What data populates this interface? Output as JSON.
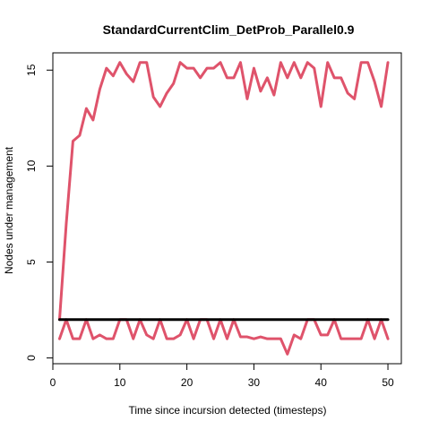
{
  "chart_data": {
    "type": "line",
    "title": "StandardCurrentClim_DetProb_Parallel0.9",
    "xlabel": "Time since incursion detected (timesteps)",
    "ylabel": "Nodes under management",
    "xlim": [
      0,
      52
    ],
    "ylim": [
      -0.3,
      15.9
    ],
    "x_ticks": [
      0,
      10,
      20,
      30,
      40,
      50
    ],
    "y_ticks": [
      0,
      5,
      10,
      15
    ],
    "grid": false,
    "legend": "none",
    "x": [
      1,
      2,
      3,
      4,
      5,
      6,
      7,
      8,
      9,
      10,
      11,
      12,
      13,
      14,
      15,
      16,
      17,
      18,
      19,
      20,
      21,
      22,
      23,
      24,
      25,
      26,
      27,
      28,
      29,
      30,
      31,
      32,
      33,
      34,
      35,
      36,
      37,
      38,
      39,
      40,
      41,
      42,
      43,
      44,
      45,
      46,
      47,
      48,
      49,
      50
    ],
    "series": [
      {
        "color": "#DF536B",
        "values": [
          2.0,
          7.0,
          11.3,
          11.6,
          13.0,
          12.4,
          14.0,
          15.1,
          14.7,
          15.4,
          14.8,
          14.4,
          15.4,
          15.4,
          13.6,
          13.1,
          13.8,
          14.3,
          15.4,
          15.1,
          15.1,
          14.6,
          15.1,
          15.1,
          15.4,
          14.6,
          14.6,
          15.4,
          13.5,
          15.1,
          13.9,
          14.6,
          13.7,
          15.4,
          14.6,
          15.4,
          14.6,
          15.4,
          15.1,
          13.1,
          15.4,
          14.6,
          14.6,
          13.8,
          13.5,
          15.4,
          15.4,
          14.4,
          13.1,
          15.4
        ]
      },
      {
        "color": "#DF536B",
        "values": [
          1.0,
          2.0,
          1.0,
          1.0,
          2.0,
          1.0,
          1.2,
          1.0,
          1.0,
          2.0,
          2.0,
          1.0,
          2.0,
          1.2,
          1.0,
          2.0,
          1.0,
          1.0,
          1.2,
          2.0,
          1.0,
          2.0,
          2.0,
          1.0,
          2.0,
          1.0,
          2.0,
          1.1,
          1.1,
          1.0,
          1.1,
          1.0,
          1.0,
          1.0,
          0.2,
          1.2,
          1.0,
          2.0,
          2.0,
          1.2,
          1.2,
          2.0,
          1.0,
          1.0,
          1.0,
          1.0,
          2.0,
          1.0,
          2.0,
          1.0
        ]
      },
      {
        "color": "#000000",
        "values": [
          2,
          2,
          2,
          2,
          2,
          2,
          2,
          2,
          2,
          2,
          2,
          2,
          2,
          2,
          2,
          2,
          2,
          2,
          2,
          2,
          2,
          2,
          2,
          2,
          2,
          2,
          2,
          2,
          2,
          2,
          2,
          2,
          2,
          2,
          2,
          2,
          2,
          2,
          2,
          2,
          2,
          2,
          2,
          2,
          2,
          2,
          2,
          2,
          2,
          2
        ]
      }
    ]
  }
}
